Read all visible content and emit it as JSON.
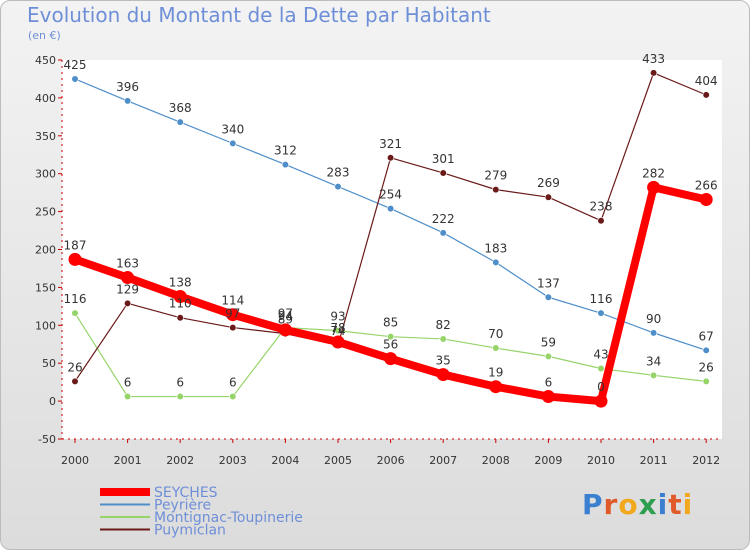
{
  "header": {
    "title": "Evolution du Montant de la Dette par Habitant",
    "subtitle": "(en €)"
  },
  "logo_text": "Proxiti",
  "chart_data": {
    "type": "line",
    "title": "Evolution du Montant de la Dette par Habitant",
    "ylabel": "(en €)",
    "xlabel": "",
    "ylim": [
      -50,
      450
    ],
    "yticks": [
      -50,
      0,
      50,
      100,
      150,
      200,
      250,
      300,
      350,
      400,
      450
    ],
    "grid": false,
    "legend_position": "bottom-left",
    "x": [
      "2000",
      "2001",
      "2002",
      "2003",
      "2004",
      "2005",
      "2006",
      "2007",
      "2008",
      "2009",
      "2010",
      "2011",
      "2012"
    ],
    "series": [
      {
        "name": "SEYCHES",
        "color": "#ff0000",
        "bold": true,
        "values": [
          187,
          163,
          138,
          114,
          94,
          78,
          56,
          35,
          19,
          6,
          0,
          282,
          266
        ]
      },
      {
        "name": "Peyrière",
        "color": "#4f8fc9",
        "bold": false,
        "values": [
          425,
          396,
          368,
          340,
          312,
          283,
          254,
          222,
          183,
          137,
          116,
          90,
          67
        ]
      },
      {
        "name": "Montignac-Toupinerie",
        "color": "#96d46a",
        "bold": false,
        "values": [
          116,
          6,
          6,
          6,
          97,
          93,
          85,
          82,
          70,
          59,
          43,
          34,
          26
        ]
      },
      {
        "name": "Puymiclan",
        "color": "#6b1a1a",
        "bold": false,
        "values": [
          26,
          129,
          110,
          97,
          89,
          74,
          321,
          301,
          279,
          269,
          238,
          433,
          404
        ]
      }
    ]
  }
}
